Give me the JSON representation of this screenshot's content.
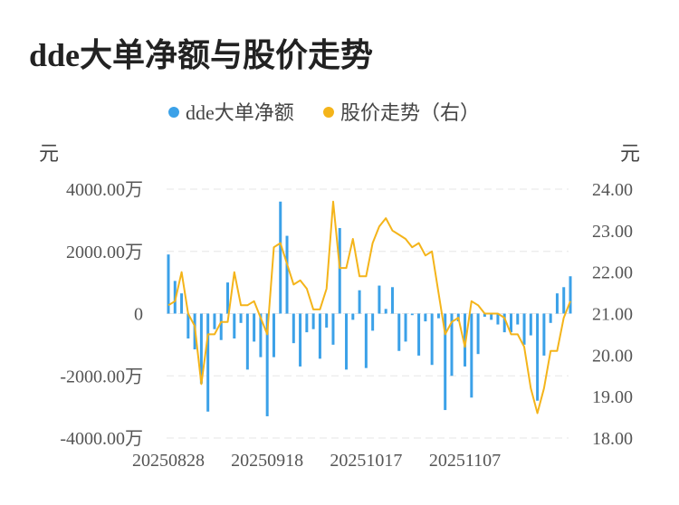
{
  "title": "dde大单净额与股价走势",
  "chart_data": {
    "type": "bar+line",
    "title": "dde大单净额与股价走势",
    "legend": [
      {
        "name": "dde大单净额",
        "color": "#3ba1e8"
      },
      {
        "name": "股价走势（右）",
        "color": "#f4b41a"
      }
    ],
    "legend_position": "top",
    "y_left": {
      "unit": "元",
      "min": -4000,
      "max": 4000,
      "ticks": [
        "4000.00万",
        "2000.00万",
        "0",
        "-2000.00万",
        "-4000.00万"
      ]
    },
    "y_right": {
      "unit": "元",
      "min": 18,
      "max": 24,
      "ticks": [
        "24.00",
        "23.00",
        "22.00",
        "21.00",
        "20.00",
        "19.00",
        "18.00"
      ]
    },
    "x_ticks": [
      {
        "label": "20250828",
        "index": 0
      },
      {
        "label": "20250918",
        "index": 15
      },
      {
        "label": "20251017",
        "index": 30
      },
      {
        "label": "20251107",
        "index": 45
      }
    ],
    "grid": true,
    "bar_color": "#3ba1e8",
    "line_color": "#f4b41a",
    "bars": [
      1900,
      1050,
      650,
      -800,
      -1150,
      -2250,
      -3150,
      -500,
      -850,
      1000,
      -800,
      -300,
      -1800,
      -900,
      -1400,
      -3300,
      -1400,
      3600,
      2500,
      -950,
      -1700,
      -600,
      -500,
      -1450,
      -450,
      -1000,
      2750,
      -1800,
      -200,
      750,
      -1750,
      -550,
      900,
      150,
      850,
      -1200,
      -900,
      -50,
      -1350,
      -250,
      -1650,
      -150,
      -3100,
      -2000,
      -250,
      -1700,
      -2700,
      -1300,
      -100,
      -200,
      -350,
      -600,
      -600,
      -350,
      -1000,
      -700,
      -2800,
      -1350,
      -300,
      650,
      850,
      1200
    ],
    "prices": [
      21.2,
      21.3,
      22.0,
      21.0,
      20.7,
      19.3,
      20.5,
      20.5,
      20.8,
      20.8,
      22.0,
      21.2,
      21.2,
      21.3,
      20.9,
      20.5,
      22.6,
      22.7,
      22.2,
      21.7,
      21.8,
      21.6,
      21.1,
      21.1,
      21.6,
      23.7,
      22.1,
      22.1,
      22.8,
      21.9,
      21.9,
      22.7,
      23.1,
      23.3,
      23.0,
      22.9,
      22.8,
      22.6,
      22.7,
      22.4,
      22.5,
      21.5,
      20.5,
      20.8,
      20.9,
      20.2,
      21.3,
      21.2,
      21.0,
      21.0,
      21.0,
      20.9,
      20.5,
      20.5,
      20.2,
      19.2,
      18.6,
      19.2,
      20.1,
      20.1,
      20.9,
      21.3
    ]
  }
}
